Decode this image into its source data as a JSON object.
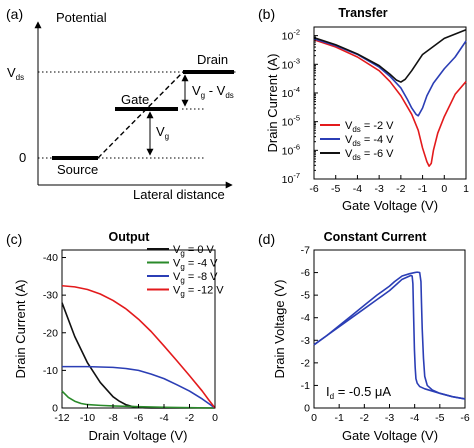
{
  "panels": {
    "a": {
      "label": "(a)",
      "y_axis_label": "Potential",
      "x_axis_label": "Lateral distance",
      "levels": {
        "vds": {
          "main": "V",
          "sub": "ds"
        },
        "zero": "0"
      },
      "electrodes": {
        "drain": "Drain",
        "gate": "Gate",
        "source": "Source"
      },
      "arrows": {
        "vg": {
          "main": "V",
          "sub": "g"
        },
        "vg_minus_vds": {
          "v1": "V",
          "s1": "g",
          "mid": " - V",
          "s2": "ds"
        }
      }
    },
    "b": {
      "label": "(b)"
    },
    "c": {
      "label": "(c)"
    },
    "d": {
      "label": "(d)"
    }
  },
  "chart_data": [
    {
      "panel": "b",
      "type": "line",
      "title": "Transfer",
      "xlabel": "Gate Voltage (V)",
      "ylabel": "Drain Current (A)",
      "xlim": [
        -6,
        1
      ],
      "ylim": [
        1e-07,
        0.02
      ],
      "yscale": "log",
      "x_ticks": [
        "-6",
        "-5",
        "-4",
        "-3",
        "-2",
        "-1",
        "0",
        "1"
      ],
      "y_ticks": [
        {
          "value": 0.01,
          "m": "10",
          "e": "-2"
        },
        {
          "value": 0.001,
          "m": "10",
          "e": "-3"
        },
        {
          "value": 0.0001,
          "m": "10",
          "e": "-4"
        },
        {
          "value": 1e-05,
          "m": "10",
          "e": "-5"
        },
        {
          "value": 1e-06,
          "m": "10",
          "e": "-6"
        },
        {
          "value": 1e-07,
          "m": "10",
          "e": "-7"
        }
      ],
      "legend_position": "bottom-left",
      "series": [
        {
          "legend_main": "V",
          "legend_sub": "ds",
          "legend_tail": " = -2 V",
          "color": "#e31a1c",
          "x": [
            -6,
            -5,
            -4,
            -3,
            -2.5,
            -2,
            -1.5,
            -1.2,
            -1.0,
            -0.8,
            -0.7,
            -0.6,
            -0.5,
            -0.3,
            0,
            0.5,
            1
          ],
          "y": [
            0.0072,
            0.004,
            0.0018,
            0.0006,
            0.00025,
            8e-05,
            1.8e-05,
            5e-06,
            1.2e-06,
            4e-07,
            2.8e-07,
            3.5e-07,
            1e-06,
            4e-06,
            1.5e-05,
            9e-05,
            0.00025
          ]
        },
        {
          "legend_main": "V",
          "legend_sub": "ds",
          "legend_tail": " = -4 V",
          "color": "#2b3eb5",
          "x": [
            -6,
            -5,
            -4,
            -3,
            -2.5,
            -2,
            -1.7,
            -1.5,
            -1.3,
            -1.2,
            -1.0,
            -0.8,
            -0.5,
            0,
            0.5,
            1
          ],
          "y": [
            0.0078,
            0.0045,
            0.0022,
            0.0008,
            0.00038,
            0.00015,
            6e-05,
            3e-05,
            1.8e-05,
            1.6e-05,
            3e-05,
            8e-05,
            0.00022,
            0.0007,
            0.0018,
            0.0065
          ]
        },
        {
          "legend_main": "V",
          "legend_sub": "ds",
          "legend_tail": " = -6 V",
          "color": "#111111",
          "x": [
            -6,
            -5,
            -4,
            -3,
            -2.5,
            -2.2,
            -2.0,
            -1.8,
            -1.5,
            -1,
            0,
            1
          ],
          "y": [
            0.0085,
            0.0048,
            0.0023,
            0.0009,
            0.00045,
            0.00028,
            0.00024,
            0.0003,
            0.0006,
            0.0022,
            0.008,
            0.016
          ]
        }
      ]
    },
    {
      "panel": "c",
      "type": "line",
      "title": "Output",
      "xlabel": "Drain Voltage (V)",
      "ylabel": "Drain Current (A)",
      "xlim": [
        -12,
        0
      ],
      "ylim": [
        0,
        -42
      ],
      "x_ticks": [
        "-12",
        "-10",
        "-8",
        "-6",
        "-4",
        "-2",
        "0"
      ],
      "y_ticks": [
        "0",
        "-10",
        "-20",
        "-30",
        "-40"
      ],
      "legend_position": "top-right",
      "series": [
        {
          "legend_main": "V",
          "legend_sub": "g",
          "legend_tail": " = 0 V",
          "color": "#111111",
          "x": [
            -12,
            -11,
            -10,
            -9,
            -8,
            -7.5,
            -7,
            -6.5,
            -6,
            -5.5,
            -5,
            -4,
            -2,
            0
          ],
          "y": [
            -28,
            -19,
            -12,
            -6.8,
            -3,
            -1.8,
            -0.9,
            -0.4,
            -0.15,
            -0.05,
            0,
            0,
            0,
            0
          ]
        },
        {
          "legend_main": "V",
          "legend_sub": "g",
          "legend_tail": " = -4 V",
          "color": "#2a8a2a",
          "x": [
            -12,
            -11.5,
            -11,
            -10.5,
            -10,
            -9,
            -8,
            -6,
            -4,
            -2,
            0
          ],
          "y": [
            -4.5,
            -2.8,
            -1.8,
            -1.2,
            -0.9,
            -0.7,
            -0.55,
            -0.35,
            -0.2,
            -0.1,
            0
          ]
        },
        {
          "legend_main": "V",
          "legend_sub": "g",
          "legend_tail": " = -8 V",
          "color": "#2b3eb5",
          "x": [
            -12,
            -10,
            -8,
            -7,
            -6,
            -5,
            -4,
            -3,
            -2,
            -1,
            -0.5,
            0
          ],
          "y": [
            -11,
            -11,
            -10.8,
            -10.5,
            -10,
            -9,
            -7.8,
            -6.2,
            -4.5,
            -2.4,
            -1.2,
            0
          ]
        },
        {
          "legend_main": "V",
          "legend_sub": "g",
          "legend_tail": " = -12 V",
          "color": "#e31a1c",
          "x": [
            -12,
            -11,
            -10,
            -9,
            -8,
            -7,
            -6,
            -5,
            -4,
            -3,
            -2,
            -1,
            -0.5,
            0
          ],
          "y": [
            -32.5,
            -32.2,
            -31.5,
            -30.3,
            -28.6,
            -26.4,
            -23.6,
            -20.3,
            -16.5,
            -12.6,
            -8.6,
            -4.5,
            -2.2,
            0
          ]
        }
      ]
    },
    {
      "panel": "d",
      "type": "line",
      "title": "Constant Current",
      "xlabel": "Gate Voltage (V)",
      "ylabel": "Drain Voltage (V)",
      "xlim": [
        0,
        -6
      ],
      "ylim": [
        0,
        -7
      ],
      "x_ticks": [
        "0",
        "-1",
        "-2",
        "-3",
        "-4",
        "-5",
        "-6"
      ],
      "y_ticks": [
        "0",
        "-1",
        "-2",
        "-3",
        "-4",
        "-5",
        "-6",
        "-7"
      ],
      "annotation": {
        "main": "I",
        "sub": "d",
        "tail": " = -0.5 μA"
      },
      "series": [
        {
          "color": "#2b3eb5",
          "x": [
            0,
            -0.5,
            -1,
            -1.5,
            -2,
            -2.5,
            -3,
            -3.3,
            -3.5,
            -3.7,
            -3.8,
            -3.85,
            -3.9,
            -3.93,
            -3.96,
            -3.99,
            -4.02,
            -4.05,
            -4.1,
            -4.2,
            -4.4,
            -4.7,
            -5.0,
            -5.5,
            -6
          ],
          "y": [
            -2.8,
            -3.2,
            -3.6,
            -4.0,
            -4.4,
            -4.8,
            -5.2,
            -5.5,
            -5.7,
            -5.8,
            -5.85,
            -5.87,
            -5.85,
            -5.5,
            -4.0,
            -2.6,
            -1.8,
            -1.3,
            -1.1,
            -0.95,
            -0.85,
            -0.75,
            -0.65,
            -0.5,
            -0.4
          ]
        },
        {
          "color": "#2b3eb5",
          "x": [
            -6,
            -5.5,
            -5.0,
            -4.7,
            -4.5,
            -4.4,
            -4.35,
            -4.3,
            -4.27,
            -4.25,
            -4.2,
            -4.1,
            -4.0,
            -3.8,
            -3.5,
            -3.2,
            -3.0,
            -2.5,
            -2,
            -1.5,
            -1,
            -0.5,
            0
          ],
          "y": [
            -0.4,
            -0.5,
            -0.65,
            -0.8,
            -1.0,
            -1.4,
            -2.2,
            -3.5,
            -4.7,
            -5.6,
            -6.0,
            -6.02,
            -6.0,
            -5.95,
            -5.85,
            -5.6,
            -5.4,
            -5.0,
            -4.55,
            -4.1,
            -3.65,
            -3.2,
            -2.8
          ]
        }
      ]
    }
  ]
}
